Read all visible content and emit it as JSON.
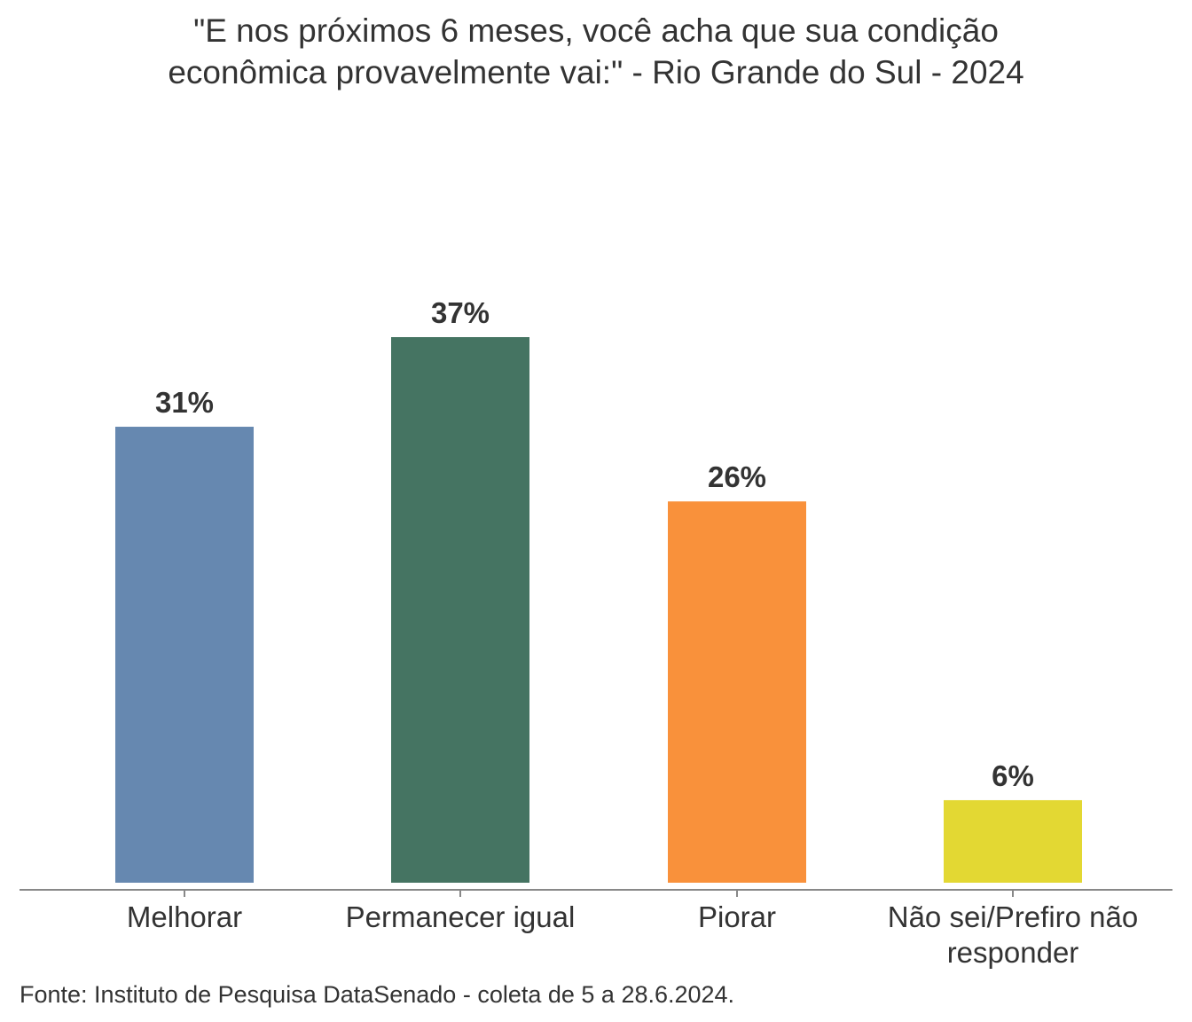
{
  "chart_data": {
    "type": "bar",
    "title_lines": [
      "\"E nos próximos 6 meses, você acha que sua condição",
      "econômica provavelmente vai:\" - Rio Grande do Sul - 2024"
    ],
    "categories": [
      [
        "Melhorar"
      ],
      [
        "Permanecer igual"
      ],
      [
        "Piorar"
      ],
      [
        "Não sei/Prefiro não",
        "responder"
      ]
    ],
    "values": [
      31,
      37,
      26,
      6
    ],
    "data_labels": [
      "31%",
      "37%",
      "26%",
      "6%"
    ],
    "colors": [
      "#6688b0",
      "#457462",
      "#f9913b",
      "#e3d833"
    ],
    "xlabel": "",
    "ylabel": "",
    "ylim": [
      0,
      37
    ],
    "grid": false,
    "legend": "none"
  },
  "source": "Fonte: Instituto de Pesquisa DataSenado - coleta de 5 a 28.6.2024."
}
